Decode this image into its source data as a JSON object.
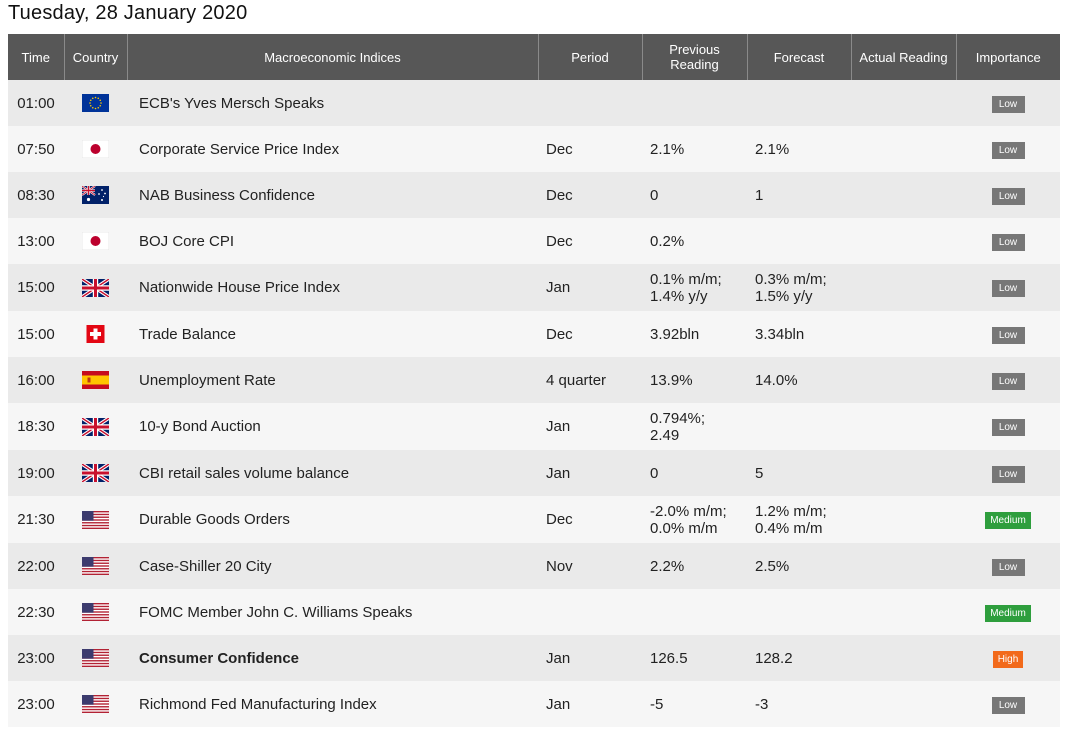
{
  "page_title": "Tuesday, 28 January 2020",
  "headers": {
    "time": "Time",
    "country": "Country",
    "indices": "Macroeconomic Indices",
    "period": "Period",
    "previous_1": "Previous",
    "previous_2": "Reading",
    "forecast": "Forecast",
    "actual": "Actual Reading",
    "importance": "Importance"
  },
  "importance_colors": {
    "low": "#777777",
    "medium": "#2e9e3d",
    "high": "#f26a1b"
  },
  "rows": [
    {
      "time": "01:00",
      "flag": "eu-flag-icon",
      "indicator": "ECB's Yves Mersch Speaks",
      "period": "",
      "prev1": "",
      "prev2": "",
      "fc1": "",
      "fc2": "",
      "actual": "",
      "importance": "Low"
    },
    {
      "time": "07:50",
      "flag": "japan-flag-icon",
      "indicator": "Corporate Service Price Index",
      "period": "Dec",
      "prev1": "2.1%",
      "prev2": "",
      "fc1": "2.1%",
      "fc2": "",
      "actual": "",
      "importance": "Low"
    },
    {
      "time": "08:30",
      "flag": "australia-flag-icon",
      "indicator": "NAB Business Confidence",
      "period": "Dec",
      "prev1": "0",
      "prev2": "",
      "fc1": "1",
      "fc2": "",
      "actual": "",
      "importance": "Low"
    },
    {
      "time": "13:00",
      "flag": "japan-flag-icon",
      "indicator": "BOJ Core CPI",
      "period": "Dec",
      "prev1": "0.2%",
      "prev2": "",
      "fc1": "",
      "fc2": "",
      "actual": "",
      "importance": "Low"
    },
    {
      "time": "15:00",
      "flag": "uk-flag-icon",
      "indicator": "Nationwide House Price Index",
      "period": "Jan",
      "prev1": "0.1% m/m;",
      "prev2": "1.4% y/y",
      "fc1": "0.3% m/m;",
      "fc2": "1.5% y/y",
      "actual": "",
      "importance": "Low"
    },
    {
      "time": "15:00",
      "flag": "switzerland-flag-icon",
      "indicator": "Trade Balance",
      "period": "Dec",
      "prev1": "3.92bln",
      "prev2": "",
      "fc1": "3.34bln",
      "fc2": "",
      "actual": "",
      "importance": "Low"
    },
    {
      "time": "16:00",
      "flag": "spain-flag-icon",
      "indicator": "Unemployment Rate",
      "period": "4 quarter",
      "prev1": "13.9%",
      "prev2": "",
      "fc1": "14.0%",
      "fc2": "",
      "actual": "",
      "importance": "Low"
    },
    {
      "time": "18:30",
      "flag": "uk-flag-icon",
      "indicator": "10-y Bond Auction",
      "period": "Jan",
      "prev1": "0.794%;",
      "prev2": "2.49",
      "fc1": "",
      "fc2": "",
      "actual": "",
      "importance": "Low"
    },
    {
      "time": "19:00",
      "flag": "uk-flag-icon",
      "indicator": "CBI retail sales volume balance",
      "period": "Jan",
      "prev1": "0",
      "prev2": "",
      "fc1": "5",
      "fc2": "",
      "actual": "",
      "importance": "Low"
    },
    {
      "time": "21:30",
      "flag": "usa-flag-icon",
      "indicator": "Durable Goods Orders",
      "period": "Dec",
      "prev1": "-2.0% m/m;",
      "prev2": "0.0% m/m",
      "fc1": "1.2% m/m;",
      "fc2": "0.4% m/m",
      "actual": "",
      "importance": "Medium"
    },
    {
      "time": "22:00",
      "flag": "usa-flag-icon",
      "indicator": "Case-Shiller 20 City",
      "period": "Nov",
      "prev1": "2.2%",
      "prev2": "",
      "fc1": "2.5%",
      "fc2": "",
      "actual": "",
      "importance": "Low"
    },
    {
      "time": "22:30",
      "flag": "usa-flag-icon",
      "indicator": "FOMC Member John C. Williams Speaks",
      "period": "",
      "prev1": "",
      "prev2": "",
      "fc1": "",
      "fc2": "",
      "actual": "",
      "importance": "Medium"
    },
    {
      "time": "23:00",
      "flag": "usa-flag-icon",
      "indicator": "Consumer Confidence",
      "bold": true,
      "period": "Jan",
      "prev1": "126.5",
      "prev2": "",
      "fc1": "128.2",
      "fc2": "",
      "actual": "",
      "importance": "High"
    },
    {
      "time": "23:00",
      "flag": "usa-flag-icon",
      "indicator": "Richmond Fed Manufacturing Index",
      "period": "Jan",
      "prev1": "-5",
      "prev2": "",
      "fc1": "-3",
      "fc2": "",
      "actual": "",
      "importance": "Low"
    }
  ]
}
